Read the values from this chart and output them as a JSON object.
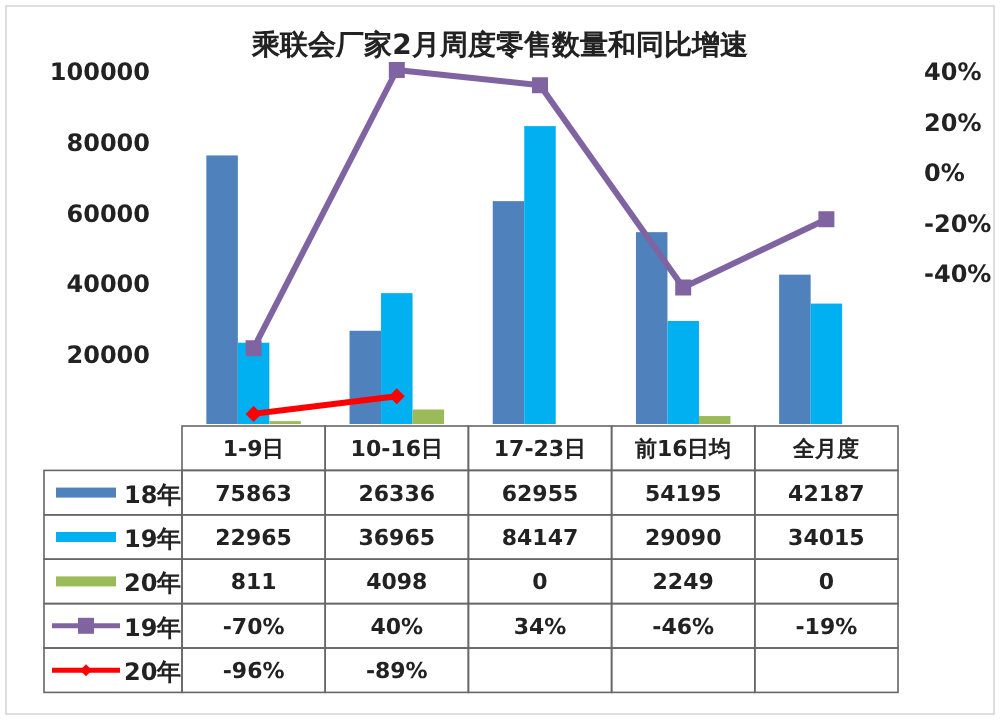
{
  "chart_data": {
    "type": "bar",
    "title": "乘联会厂家2月周度零售数量和同比增速",
    "categories": [
      "1-9日",
      "10-16日",
      "17-23日",
      "前16日均",
      "全月度"
    ],
    "series": [
      {
        "name": "18年",
        "color": "#4f81bd",
        "values": [
          75863,
          26336,
          62955,
          54195,
          42187
        ]
      },
      {
        "name": "19年",
        "color": "#00b0f0",
        "values": [
          22965,
          36965,
          84147,
          29090,
          34015
        ]
      },
      {
        "name": "20年",
        "color": "#9bbb59",
        "values": [
          811,
          4098,
          0,
          2249,
          0
        ]
      },
      {
        "name": "19年",
        "type": "line",
        "axis": "y2",
        "color": "#8064a2",
        "marker": "square",
        "values": [
          -70,
          40,
          34,
          -46,
          -19
        ],
        "value_labels": [
          "-70%",
          "40%",
          "34%",
          "-46%",
          "-19%"
        ]
      },
      {
        "name": "20年",
        "type": "line",
        "axis": "y2",
        "color": "#ff0000",
        "marker": "diamond",
        "values": [
          -96,
          -89,
          null,
          null,
          null
        ],
        "value_labels": [
          "-96%",
          "-89%",
          null,
          null,
          null
        ]
      }
    ],
    "ylim": [
      0,
      100000
    ],
    "yticks": [
      20000,
      40000,
      60000,
      80000,
      100000
    ],
    "y2lim": [
      -100,
      40
    ],
    "y2ticks": [
      {
        "value": -40,
        "label": "-40%"
      },
      {
        "value": -20,
        "label": "-20%"
      },
      {
        "value": 0,
        "label": "0%"
      },
      {
        "value": 20,
        "label": "20%"
      },
      {
        "value": 40,
        "label": "40%"
      }
    ],
    "data_labels": true,
    "legend": "bottom",
    "grid": false
  }
}
